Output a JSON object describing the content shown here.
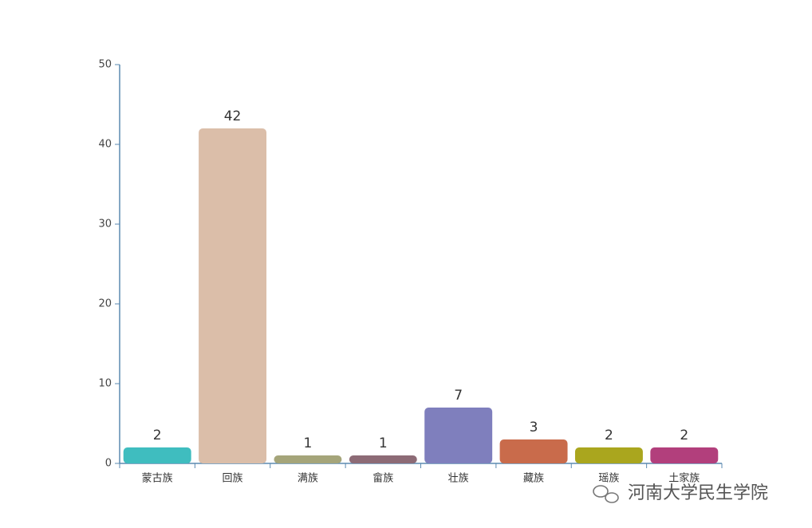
{
  "chart_data": {
    "type": "bar",
    "categories": [
      "蒙古族",
      "回族",
      "满族",
      "畲族",
      "壮族",
      "藏族",
      "瑶族",
      "土家族"
    ],
    "values": [
      2,
      42,
      1,
      1,
      7,
      3,
      2,
      2
    ],
    "colors": [
      "#3fbdbf",
      "#dbbea9",
      "#a5a57a",
      "#8d6b76",
      "#7f7fbd",
      "#c96b4b",
      "#aaa61e",
      "#b23f7c"
    ],
    "ylim": [
      0,
      50
    ],
    "yticks": [
      0,
      10,
      20,
      30,
      40,
      50
    ],
    "grid": false,
    "watermark": "河南大学民生学院"
  }
}
